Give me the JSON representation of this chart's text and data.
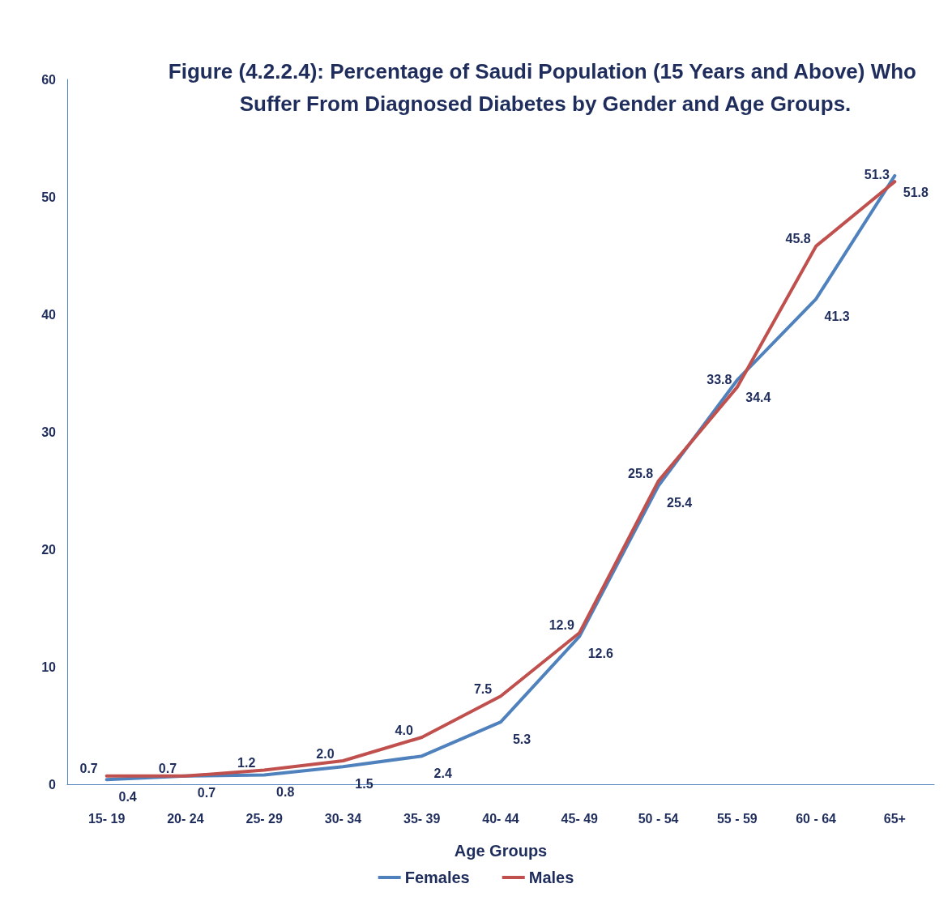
{
  "chart_data": {
    "type": "line",
    "title": "Figure (4.2.2.4): Percentage of Saudi Population (15 Years and Above) Who Suffer From Diagnosed Diabetes by Gender and Age Groups.",
    "xlabel": "Age Groups",
    "categories": [
      "15- 19",
      "20- 24",
      "25- 29",
      "30- 34",
      "35- 39",
      "40- 44",
      "45- 49",
      "50 - 54",
      "55 - 59",
      "60 - 64",
      "65+"
    ],
    "series": [
      {
        "name": "Females",
        "color": "#4f81bd",
        "values": [
          0.4,
          0.7,
          0.8,
          1.5,
          2.4,
          5.3,
          12.6,
          25.4,
          34.4,
          41.3,
          51.8
        ],
        "value_labels": [
          "0.4",
          "0.7",
          "0.8",
          "1.5",
          "2.4",
          "5.3",
          "12.6",
          "25.4",
          "34.4",
          "41.3",
          "51.8"
        ]
      },
      {
        "name": "Males",
        "color": "#c0504d",
        "values": [
          0.7,
          0.7,
          1.2,
          2.0,
          4.0,
          7.5,
          12.9,
          25.8,
          33.8,
          45.8,
          51.3
        ],
        "value_labels": [
          "0.7",
          "0.7",
          "1.2",
          "2.0",
          "4.0",
          "7.5",
          "12.9",
          "25.8",
          "33.8",
          "45.8",
          "51.3"
        ]
      }
    ],
    "ylim": [
      0,
      60
    ],
    "yticks": [
      0,
      10,
      20,
      30,
      40,
      50,
      60
    ],
    "grid": false,
    "legend": "bottom",
    "marker": "none",
    "line_style": "solid"
  }
}
